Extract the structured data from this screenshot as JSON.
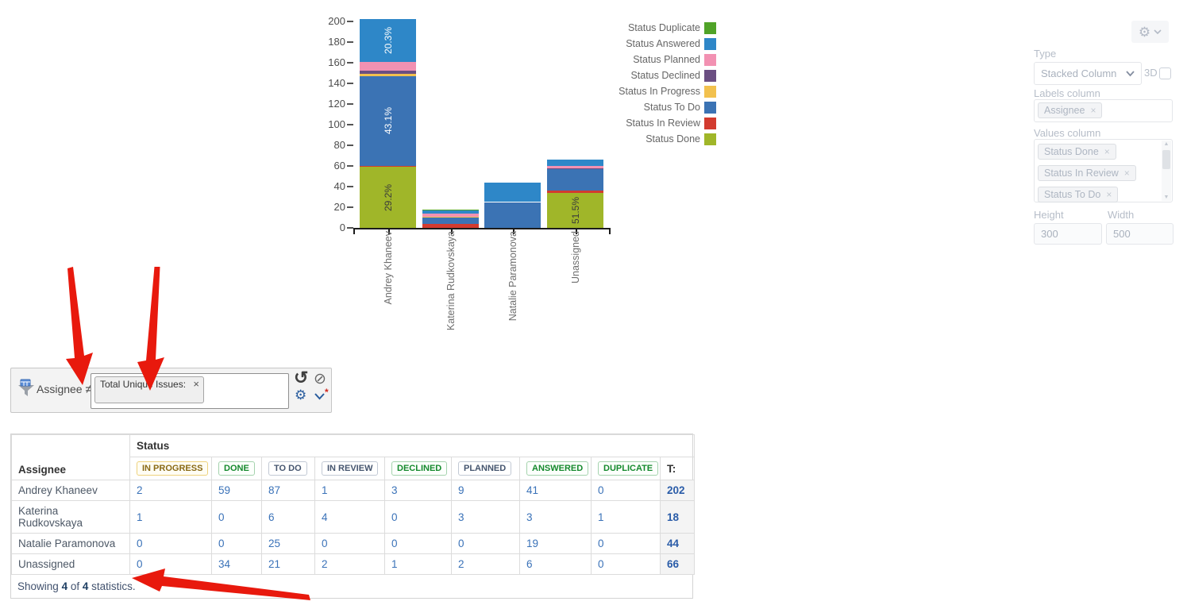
{
  "chart_data": {
    "type": "bar",
    "stacked": true,
    "title": "",
    "categories": [
      "Andrey Khaneev",
      "Katerina Rudkovskaya",
      "Natalie Paramonova",
      "Unassigned"
    ],
    "series": [
      {
        "name": "Status Duplicate",
        "color": "#50a328",
        "values": [
          0,
          1,
          0,
          0
        ]
      },
      {
        "name": "Status Answered",
        "color": "#2e87c8",
        "values": [
          41,
          3,
          19,
          6
        ],
        "label_color": "#ffffff"
      },
      {
        "name": "Status Planned",
        "color": "#f291b2",
        "values": [
          9,
          3,
          0,
          2
        ]
      },
      {
        "name": "Status Declined",
        "color": "#6b4f82",
        "values": [
          3,
          0,
          0,
          1
        ]
      },
      {
        "name": "Status In Progress",
        "color": "#f2c14e",
        "values": [
          2,
          1,
          0,
          0
        ]
      },
      {
        "name": "Status To Do",
        "color": "#3b73b4",
        "values": [
          87,
          6,
          25,
          21
        ],
        "label_color": "#ffffff"
      },
      {
        "name": "Status In Review",
        "color": "#d23b2f",
        "values": [
          1,
          4,
          0,
          2
        ],
        "label_color": "#ffffff"
      },
      {
        "name": "Status Done",
        "color": "#a0b629",
        "values": [
          59,
          0,
          0,
          34
        ],
        "label_color": "#3a3a3a"
      }
    ],
    "totals": [
      202,
      18,
      44,
      66
    ],
    "percent_labels_shown": [
      "29.2%",
      "43.1%",
      "20.3%",
      "51.5%"
    ],
    "ylim": [
      0,
      200
    ],
    "yticks": [
      0,
      20,
      40,
      60,
      80,
      100,
      120,
      140,
      160,
      180,
      200
    ],
    "legend_position": "right",
    "grid": false
  },
  "settings_panel": {
    "type_label": "Type",
    "type_value": "Stacked Column",
    "threed_label": "3D",
    "threed_checked": false,
    "labels_column_label": "Labels column",
    "labels_column_tags": [
      "Assignee"
    ],
    "values_column_label": "Values column",
    "values_column_tags": [
      "Status Done",
      "Status In Review",
      "Status To Do"
    ],
    "height_label": "Height",
    "height_value": "300",
    "width_label": "Width",
    "width_value": "500",
    "gear_icon": "gear-icon",
    "dropdown_icon": "chevron-down-icon",
    "tag_remove_glyph": "×"
  },
  "filter_bar": {
    "dimension": "Assignee",
    "operator": "≠",
    "selected_tag": "Total Unique Issues:",
    "tag_remove_glyph": "×",
    "undo_glyph": "↺",
    "clear_glyph": "⊘",
    "gear_glyph": "⚙",
    "required_mark": "*"
  },
  "stats_table": {
    "group_header": "Status",
    "row_header": "Assignee",
    "total_header": "T:",
    "columns": [
      {
        "label": "IN PROGRESS",
        "variant": "yellow"
      },
      {
        "label": "DONE",
        "variant": "green"
      },
      {
        "label": "TO DO",
        "variant": "neutral"
      },
      {
        "label": "IN REVIEW",
        "variant": "neutral"
      },
      {
        "label": "DECLINED",
        "variant": "green"
      },
      {
        "label": "PLANNED",
        "variant": "neutral"
      },
      {
        "label": "ANSWERED",
        "variant": "green"
      },
      {
        "label": "DUPLICATE",
        "variant": "green"
      }
    ],
    "rows": [
      {
        "assignee": "Andrey Khaneev",
        "values": [
          2,
          59,
          87,
          1,
          3,
          9,
          41,
          0
        ],
        "total": 202
      },
      {
        "assignee": "Katerina Rudkovskaya",
        "values": [
          1,
          0,
          6,
          4,
          0,
          3,
          3,
          1
        ],
        "total": 18
      },
      {
        "assignee": "Natalie Paramonova",
        "values": [
          0,
          0,
          25,
          0,
          0,
          0,
          19,
          0
        ],
        "total": 44
      },
      {
        "assignee": "Unassigned",
        "values": [
          0,
          34,
          21,
          2,
          1,
          2,
          6,
          0
        ],
        "total": 66
      }
    ],
    "footer": {
      "prefix": "Showing",
      "shown": "4",
      "middle": "of",
      "total": "4",
      "suffix": "statistics."
    }
  },
  "annotations": {
    "arrow_color": "#e8190d",
    "arrows": [
      "arrow-to-filter-operator",
      "arrow-to-filter-tag",
      "arrow-to-table-footer"
    ]
  }
}
